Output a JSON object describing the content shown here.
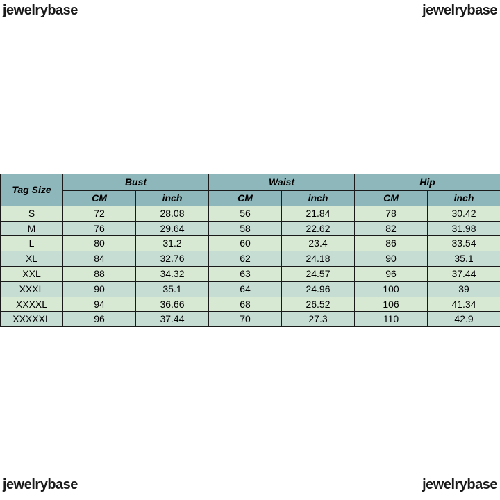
{
  "watermark": "jewelrybase",
  "table": {
    "type": "table",
    "header_bg": "#8eb7bb",
    "row_bg_even": "#d7e9d3",
    "row_bg_odd": "#c6ddd4",
    "border_color": "#1a1a1a",
    "font_family": "Arial",
    "header_fontsize": 15,
    "cell_fontsize": 14,
    "tag_label": "Tag Size",
    "groups": [
      "Bust",
      "Waist",
      "Hip"
    ],
    "units": [
      "CM",
      "inch"
    ],
    "rows": [
      {
        "tag": "S",
        "bust_cm": "72",
        "bust_in": "28.08",
        "waist_cm": "56",
        "waist_in": "21.84",
        "hip_cm": "78",
        "hip_in": "30.42"
      },
      {
        "tag": "M",
        "bust_cm": "76",
        "bust_in": "29.64",
        "waist_cm": "58",
        "waist_in": "22.62",
        "hip_cm": "82",
        "hip_in": "31.98"
      },
      {
        "tag": "L",
        "bust_cm": "80",
        "bust_in": "31.2",
        "waist_cm": "60",
        "waist_in": "23.4",
        "hip_cm": "86",
        "hip_in": "33.54"
      },
      {
        "tag": "XL",
        "bust_cm": "84",
        "bust_in": "32.76",
        "waist_cm": "62",
        "waist_in": "24.18",
        "hip_cm": "90",
        "hip_in": "35.1"
      },
      {
        "tag": "XXL",
        "bust_cm": "88",
        "bust_in": "34.32",
        "waist_cm": "63",
        "waist_in": "24.57",
        "hip_cm": "96",
        "hip_in": "37.44"
      },
      {
        "tag": "XXXL",
        "bust_cm": "90",
        "bust_in": "35.1",
        "waist_cm": "64",
        "waist_in": "24.96",
        "hip_cm": "100",
        "hip_in": "39"
      },
      {
        "tag": "XXXXL",
        "bust_cm": "94",
        "bust_in": "36.66",
        "waist_cm": "68",
        "waist_in": "26.52",
        "hip_cm": "106",
        "hip_in": "41.34"
      },
      {
        "tag": "XXXXXL",
        "bust_cm": "96",
        "bust_in": "37.44",
        "waist_cm": "70",
        "waist_in": "27.3",
        "hip_cm": "110",
        "hip_in": "42.9"
      }
    ]
  }
}
